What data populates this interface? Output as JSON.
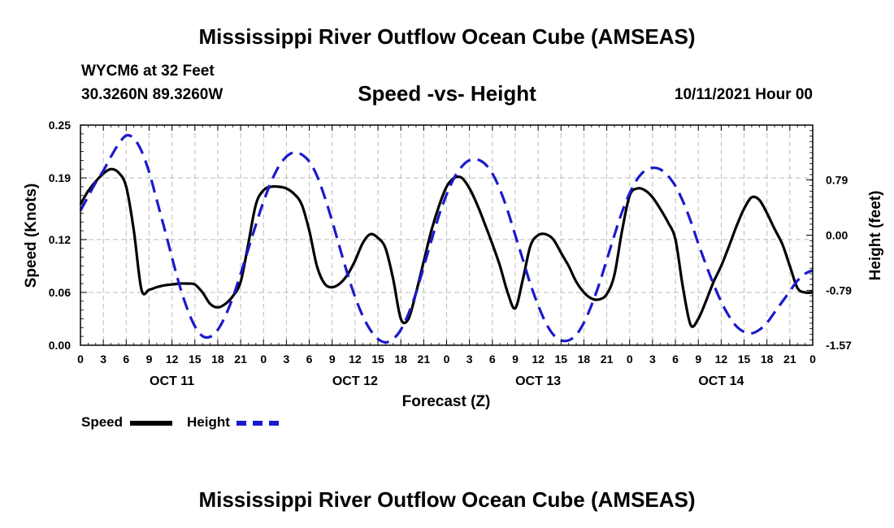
{
  "header": {
    "title": "Mississippi River Outflow Ocean Cube (AMSEAS)",
    "station": "WYCM6 at 32 Feet",
    "coords": "30.3260N  89.3260W",
    "date": "10/11/2021 Hour 00",
    "footer_title": "Mississippi River Outflow Ocean Cube (AMSEAS)"
  },
  "colors": {
    "speed": "#000000",
    "height": "#1a1acc",
    "grid": "#bbbbbb"
  },
  "chart_data": {
    "type": "line",
    "title": "Speed -vs- Height",
    "xlabel": "Forecast (Z)",
    "ylabel": "Speed (Knots)",
    "y2label": "Height (feet)",
    "xlim": [
      0,
      96
    ],
    "ylim": [
      0,
      0.25
    ],
    "y2lim": [
      -1.57,
      1.57
    ],
    "x_tick_hours": [
      0,
      3,
      6,
      9,
      12,
      15,
      18,
      21,
      24,
      27,
      30,
      33,
      36,
      39,
      42,
      45,
      48,
      51,
      54,
      57,
      60,
      63,
      66,
      69,
      72,
      75,
      78,
      81,
      84,
      87,
      90,
      93,
      96
    ],
    "x_tick_labels": [
      "0",
      "3",
      "6",
      "9",
      "12",
      "15",
      "18",
      "21",
      "0",
      "3",
      "6",
      "9",
      "12",
      "15",
      "18",
      "21",
      "0",
      "3",
      "6",
      "9",
      "12",
      "15",
      "18",
      "21",
      "0",
      "3",
      "6",
      "9",
      "12",
      "15",
      "18",
      "21",
      "0"
    ],
    "day_labels": [
      {
        "hour": 12,
        "label": "OCT 11"
      },
      {
        "hour": 36,
        "label": "OCT 12"
      },
      {
        "hour": 60,
        "label": "OCT 13"
      },
      {
        "hour": 84,
        "label": "OCT 14"
      }
    ],
    "y_ticks": [
      0,
      0.06,
      0.12,
      0.19,
      0.25
    ],
    "y_tick_labels": [
      "0.00",
      "0.06",
      "0.12",
      "0.19",
      "0.25"
    ],
    "y2_ticks": [
      -1.57,
      -0.79,
      0,
      0.79
    ],
    "y2_tick_labels": [
      "-1.57",
      "-0.79",
      "0.00",
      "0.79"
    ],
    "series": [
      {
        "name": "Speed",
        "axis": "left",
        "style": "solid",
        "x": [
          0,
          1,
          2,
          3,
          4,
          5,
          6,
          7,
          8,
          9,
          10,
          11,
          12,
          13,
          14,
          15,
          16,
          17,
          18,
          19,
          20,
          21,
          22,
          23,
          24,
          25,
          26,
          27,
          28,
          29,
          30,
          31,
          32,
          33,
          34,
          35,
          36,
          37,
          38,
          39,
          40,
          41,
          42,
          43,
          44,
          45,
          46,
          47,
          48,
          49,
          50,
          51,
          52,
          53,
          54,
          55,
          56,
          57,
          58,
          59,
          60,
          61,
          62,
          63,
          64,
          65,
          66,
          67,
          68,
          69,
          70,
          71,
          72,
          73,
          74,
          75,
          76,
          77,
          78,
          79,
          80,
          81,
          82,
          83,
          84,
          85,
          86,
          87,
          88,
          89,
          90,
          91,
          92,
          93,
          94,
          95,
          96
        ],
        "values": [
          0.16,
          0.175,
          0.186,
          0.195,
          0.2,
          0.196,
          0.18,
          0.13,
          0.063,
          0.063,
          0.066,
          0.068,
          0.069,
          0.07,
          0.07,
          0.069,
          0.06,
          0.047,
          0.043,
          0.047,
          0.056,
          0.072,
          0.115,
          0.16,
          0.176,
          0.18,
          0.18,
          0.178,
          0.172,
          0.16,
          0.13,
          0.09,
          0.07,
          0.066,
          0.07,
          0.08,
          0.096,
          0.116,
          0.126,
          0.122,
          0.11,
          0.075,
          0.03,
          0.03,
          0.06,
          0.095,
          0.13,
          0.158,
          0.18,
          0.19,
          0.19,
          0.178,
          0.16,
          0.138,
          0.115,
          0.09,
          0.06,
          0.042,
          0.075,
          0.113,
          0.125,
          0.126,
          0.12,
          0.105,
          0.09,
          0.072,
          0.06,
          0.053,
          0.052,
          0.058,
          0.08,
          0.13,
          0.17,
          0.178,
          0.176,
          0.168,
          0.155,
          0.14,
          0.12,
          0.065,
          0.023,
          0.03,
          0.05,
          0.072,
          0.09,
          0.112,
          0.135,
          0.155,
          0.168,
          0.165,
          0.15,
          0.132,
          0.115,
          0.09,
          0.065,
          0.06,
          0.06
        ]
      },
      {
        "name": "Height",
        "axis": "right",
        "style": "dashed",
        "x": [
          0,
          1,
          2,
          3,
          4,
          5,
          6,
          7,
          8,
          9,
          10,
          11,
          12,
          13,
          14,
          15,
          16,
          17,
          18,
          19,
          20,
          21,
          22,
          23,
          24,
          25,
          26,
          27,
          28,
          29,
          30,
          31,
          32,
          33,
          34,
          35,
          36,
          37,
          38,
          39,
          40,
          41,
          42,
          43,
          44,
          45,
          46,
          47,
          48,
          49,
          50,
          51,
          52,
          53,
          54,
          55,
          56,
          57,
          58,
          59,
          60,
          61,
          62,
          63,
          64,
          65,
          66,
          67,
          68,
          69,
          70,
          71,
          72,
          73,
          74,
          75,
          76,
          77,
          78,
          79,
          80,
          81,
          82,
          83,
          84,
          85,
          86,
          87,
          88,
          89,
          90,
          91,
          92,
          93,
          94,
          95,
          96
        ],
        "values": [
          0.35,
          0.55,
          0.75,
          0.92,
          1.12,
          1.3,
          1.42,
          1.38,
          1.2,
          0.9,
          0.5,
          0.1,
          -0.32,
          -0.72,
          -1.05,
          -1.3,
          -1.44,
          -1.45,
          -1.35,
          -1.15,
          -0.88,
          -0.55,
          -0.2,
          0.15,
          0.48,
          0.76,
          0.98,
          1.12,
          1.18,
          1.15,
          1.05,
          0.85,
          0.55,
          0.2,
          -0.18,
          -0.55,
          -0.88,
          -1.15,
          -1.35,
          -1.48,
          -1.53,
          -1.48,
          -1.35,
          -1.12,
          -0.82,
          -0.45,
          -0.08,
          0.28,
          0.58,
          0.82,
          0.98,
          1.07,
          1.08,
          1.02,
          0.88,
          0.65,
          0.35,
          0.0,
          -0.35,
          -0.7,
          -1.0,
          -1.25,
          -1.42,
          -1.5,
          -1.5,
          -1.42,
          -1.25,
          -1.0,
          -0.7,
          -0.35,
          0.0,
          0.33,
          0.6,
          0.8,
          0.92,
          0.96,
          0.94,
          0.85,
          0.7,
          0.48,
          0.2,
          -0.12,
          -0.42,
          -0.7,
          -0.95,
          -1.15,
          -1.3,
          -1.38,
          -1.4,
          -1.35,
          -1.25,
          -1.1,
          -0.95,
          -0.8,
          -0.65,
          -0.55,
          -0.5
        ]
      }
    ],
    "legend": [
      {
        "label": "Speed",
        "style": "solid"
      },
      {
        "label": "Height",
        "style": "dashed"
      }
    ]
  }
}
